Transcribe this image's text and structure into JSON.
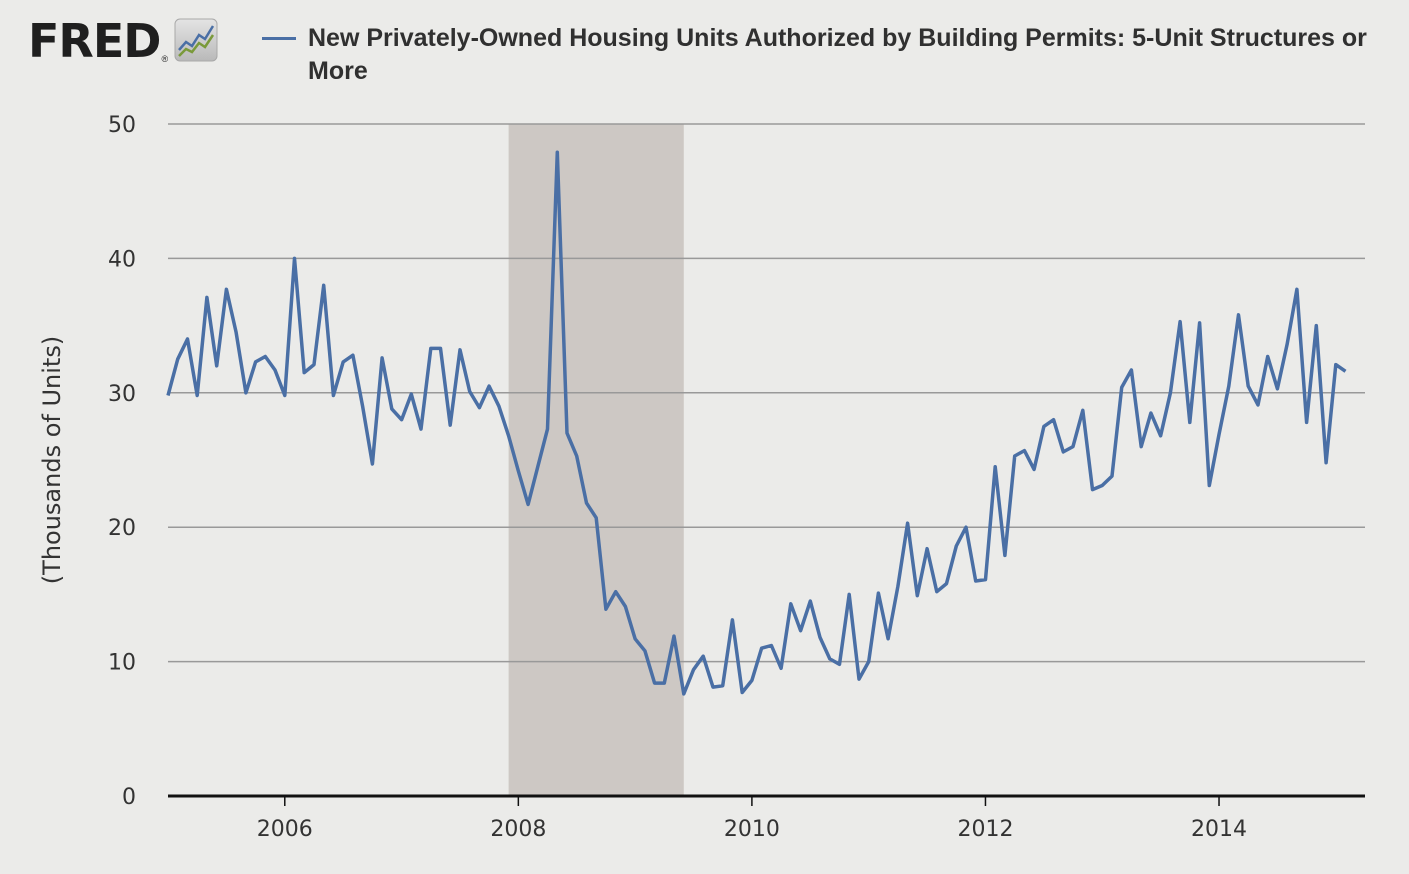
{
  "logo": {
    "text": "FRED",
    "mark": "®",
    "icon": "fred-chart-icon"
  },
  "colors": {
    "series": "#4a6fa5",
    "recession": "#cdc8c4",
    "grid": "#999999",
    "background": "#ebebe9"
  },
  "chart_data": {
    "type": "line",
    "title": "",
    "xlabel": "",
    "ylabel": "(Thousands of Units)",
    "ylim": [
      0,
      50
    ],
    "xlim": [
      2005.0,
      2015.25
    ],
    "yticks": [
      0,
      10,
      20,
      30,
      40,
      50
    ],
    "ytick_labels": [
      "0",
      "10",
      "20",
      "30",
      "40",
      "50"
    ],
    "xticks": [
      2006,
      2008,
      2010,
      2012,
      2014
    ],
    "xtick_labels": [
      "2006",
      "2008",
      "2010",
      "2012",
      "2014"
    ],
    "grid": true,
    "legend": "top",
    "recessions": [
      {
        "start": "2007-12",
        "end": "2009-06"
      }
    ],
    "series": [
      {
        "name": "New Privately-Owned Housing Units Authorized by Building Permits: 5-Unit Structures or More",
        "start": "2005-01",
        "frequency": "monthly",
        "values": [
          29.8,
          32.5,
          34.0,
          29.8,
          37.1,
          32.0,
          37.7,
          34.5,
          30.0,
          32.3,
          32.7,
          31.7,
          29.8,
          40.0,
          31.5,
          32.1,
          38.0,
          29.8,
          32.3,
          32.8,
          29.0,
          24.7,
          32.6,
          28.8,
          28.0,
          29.9,
          27.3,
          33.3,
          33.3,
          27.6,
          33.2,
          30.1,
          28.9,
          30.5,
          29.0,
          26.8,
          24.2,
          21.7,
          24.5,
          27.3,
          47.9,
          27.0,
          25.3,
          21.8,
          20.7,
          13.9,
          15.2,
          14.1,
          11.7,
          10.8,
          8.4,
          8.4,
          11.9,
          7.6,
          9.4,
          10.4,
          8.1,
          8.2,
          13.1,
          7.7,
          8.6,
          11.0,
          11.2,
          9.5,
          14.3,
          12.3,
          14.5,
          11.8,
          10.2,
          9.8,
          15.0,
          8.7,
          10.0,
          15.1,
          11.7,
          15.6,
          20.3,
          14.9,
          18.4,
          15.2,
          15.8,
          18.6,
          20.0,
          16.0,
          16.1,
          24.5,
          17.9,
          25.3,
          25.7,
          24.3,
          27.5,
          28.0,
          25.6,
          26.0,
          28.7,
          22.8,
          23.1,
          23.8,
          30.4,
          31.7,
          26.0,
          28.5,
          26.8,
          30.0,
          35.3,
          27.8,
          35.2,
          23.1,
          26.9,
          30.5,
          35.8,
          30.5,
          29.1,
          32.7,
          30.3,
          33.6,
          37.7,
          27.8,
          35.0,
          24.8,
          32.1,
          31.6
        ]
      }
    ]
  }
}
